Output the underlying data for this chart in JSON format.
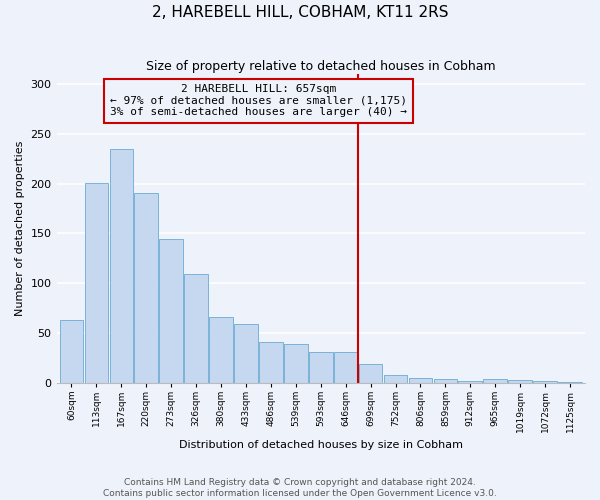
{
  "title": "2, HAREBELL HILL, COBHAM, KT11 2RS",
  "subtitle": "Size of property relative to detached houses in Cobham",
  "xlabel": "Distribution of detached houses by size in Cobham",
  "ylabel": "Number of detached properties",
  "categories": [
    "60sqm",
    "113sqm",
    "167sqm",
    "220sqm",
    "273sqm",
    "326sqm",
    "380sqm",
    "433sqm",
    "486sqm",
    "539sqm",
    "593sqm",
    "646sqm",
    "699sqm",
    "752sqm",
    "806sqm",
    "859sqm",
    "912sqm",
    "965sqm",
    "1019sqm",
    "1072sqm",
    "1125sqm"
  ],
  "values": [
    63,
    201,
    235,
    191,
    144,
    109,
    66,
    59,
    41,
    39,
    31,
    31,
    19,
    8,
    5,
    4,
    2,
    4,
    3,
    2,
    1
  ],
  "bar_color": "#c5d8f0",
  "bar_edge_color": "#6aaad4",
  "vline_color": "#cc0000",
  "box_color": "#cc0000",
  "annotation_text": "2 HAREBELL HILL: 657sqm\n← 97% of detached houses are smaller (1,175)\n3% of semi-detached houses are larger (40) →",
  "ylim": [
    0,
    310
  ],
  "yticks": [
    0,
    50,
    100,
    150,
    200,
    250,
    300
  ],
  "footer": "Contains HM Land Registry data © Crown copyright and database right 2024.\nContains public sector information licensed under the Open Government Licence v3.0.",
  "background_color": "#eef2fa",
  "grid_color": "#ffffff",
  "title_fontsize": 11,
  "subtitle_fontsize": 9,
  "annotation_fontsize": 8,
  "footer_fontsize": 6.5,
  "ylabel_fontsize": 8,
  "xlabel_fontsize": 8
}
